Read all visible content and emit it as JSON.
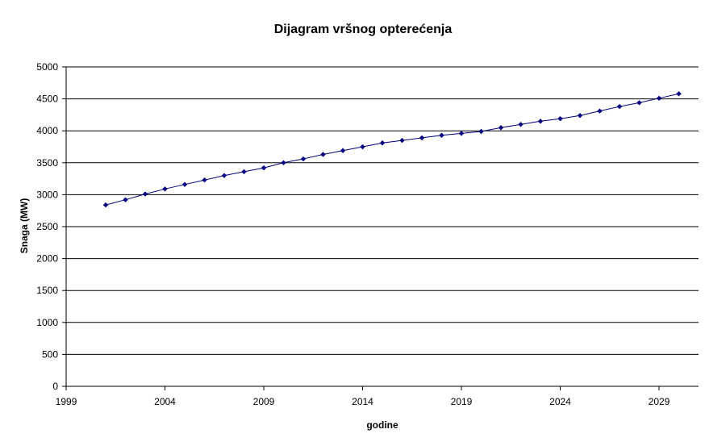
{
  "chart_data": {
    "type": "line",
    "title": "Dijagram vršnog opterećenja",
    "xlabel": "godine",
    "ylabel": "Snaga (MW)",
    "xlim": [
      1999,
      2031
    ],
    "ylim": [
      0,
      5000
    ],
    "x_ticks": [
      1999,
      2004,
      2009,
      2014,
      2019,
      2024,
      2029
    ],
    "x_tick_labels": [
      "1999",
      "2004",
      "2009",
      "2014",
      "2019",
      "2024",
      "2029"
    ],
    "y_ticks": [
      0,
      500,
      1000,
      1500,
      2000,
      2500,
      3000,
      3500,
      4000,
      4500,
      5000
    ],
    "y_tick_labels": [
      "0",
      "500",
      "1000",
      "1500",
      "2000",
      "2500",
      "3000",
      "3500",
      "4000",
      "4500",
      "5000"
    ],
    "grid": "horizontal",
    "legend": "none",
    "series": [
      {
        "color": "#000080",
        "x": [
          2001,
          2002,
          2003,
          2004,
          2005,
          2006,
          2007,
          2008,
          2009,
          2010,
          2011,
          2012,
          2013,
          2014,
          2015,
          2016,
          2017,
          2018,
          2019,
          2020,
          2021,
          2022,
          2023,
          2024,
          2025,
          2026,
          2027,
          2028,
          2029,
          2030
        ],
        "values": [
          2840,
          2920,
          3010,
          3090,
          3160,
          3230,
          3300,
          3360,
          3420,
          3500,
          3560,
          3630,
          3690,
          3750,
          3810,
          3850,
          3890,
          3930,
          3960,
          3990,
          4050,
          4100,
          4150,
          4190,
          4240,
          4310,
          4380,
          4440,
          4510,
          4580
        ]
      }
    ]
  }
}
